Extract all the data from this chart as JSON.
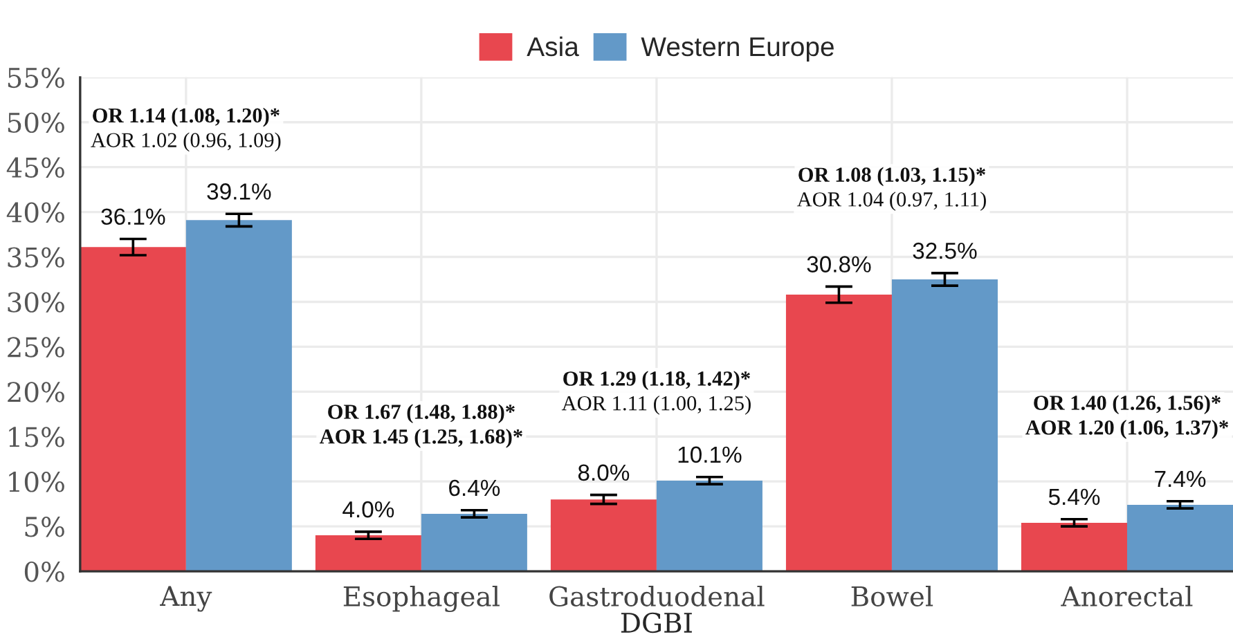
{
  "chart_data": {
    "type": "bar",
    "xlabel": "DGBI",
    "categories": [
      "Any",
      "Esophageal",
      "Gastroduodenal",
      "Bowel",
      "Anorectal"
    ],
    "series": [
      {
        "name": "Asia",
        "color": "#e8474f",
        "values": [
          36.1,
          4.0,
          8.0,
          30.8,
          5.4
        ],
        "errors": [
          0.9,
          0.4,
          0.5,
          0.9,
          0.4
        ],
        "value_labels": [
          "36.1%",
          "4.0%",
          "8.0%",
          "30.8%",
          "5.4%"
        ]
      },
      {
        "name": "Western Europe",
        "color": "#6399c8",
        "values": [
          39.1,
          6.4,
          10.1,
          32.5,
          7.4
        ],
        "errors": [
          0.7,
          0.4,
          0.4,
          0.7,
          0.4
        ],
        "value_labels": [
          "39.1%",
          "6.4%",
          "10.1%",
          "32.5%",
          "7.4%"
        ]
      }
    ],
    "ylim": [
      0,
      55
    ],
    "yticks": [
      {
        "value": 0,
        "label": "0%"
      },
      {
        "value": 5,
        "label": "5%"
      },
      {
        "value": 10,
        "label": "10%"
      },
      {
        "value": 15,
        "label": "15%"
      },
      {
        "value": 20,
        "label": "20%"
      },
      {
        "value": 25,
        "label": "25%"
      },
      {
        "value": 30,
        "label": "30%"
      },
      {
        "value": 35,
        "label": "35%"
      },
      {
        "value": 40,
        "label": "40%"
      },
      {
        "value": 45,
        "label": "45%"
      },
      {
        "value": 50,
        "label": "50%"
      },
      {
        "value": 55,
        "label": "55%"
      }
    ],
    "annotations": [
      "OR 1.14 (1.08, 1.20)*",
      "AOR 1.02 (0.96, 1.09)",
      "OR 1.67 (1.48, 1.88)*",
      "AOR 1.45 (1.25, 1.68)*",
      "OR 1.29 (1.18, 1.42)*",
      "AOR 1.11 (1.00, 1.25)",
      "OR 1.08 (1.03, 1.15)*",
      "AOR 1.04 (0.97, 1.11)",
      "OR 1.40 (1.26, 1.56)*",
      "AOR 1.20 (1.06, 1.37)*"
    ],
    "grid": true,
    "legend": "top"
  }
}
